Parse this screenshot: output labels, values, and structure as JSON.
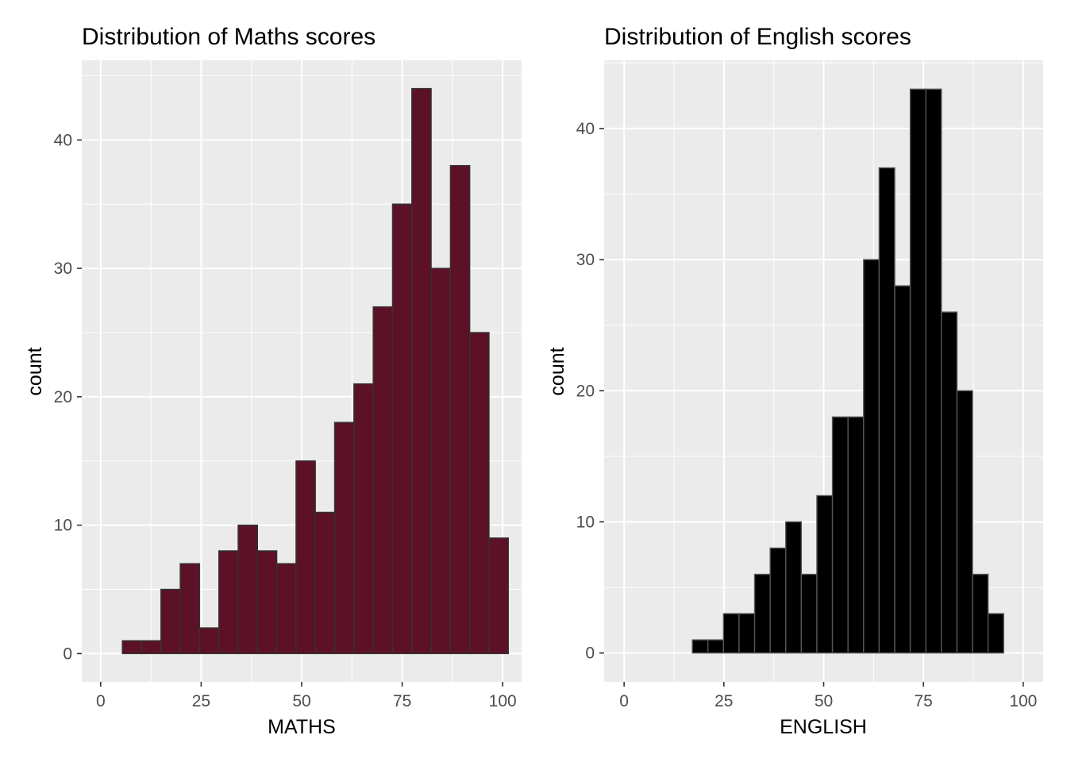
{
  "chart_data": [
    {
      "type": "bar",
      "subtype": "histogram",
      "title": "Distribution of Maths scores",
      "xlabel": "MATHS",
      "ylabel": "count",
      "fill_color": "#5c1127",
      "border_color": "#333333",
      "panel_color": "#ebebeb",
      "bin_width": 4.8,
      "xlim": [
        -4.7,
        104.7
      ],
      "ylim": [
        -2.2,
        46.2
      ],
      "x_ticks": [
        0,
        25,
        50,
        75,
        100
      ],
      "x_tick_labels": [
        "0",
        "25",
        "50",
        "75",
        "100"
      ],
      "y_ticks": [
        0,
        10,
        20,
        30,
        40
      ],
      "y_tick_labels": [
        "0",
        "10",
        "20",
        "30",
        "40"
      ],
      "bins": [
        {
          "x0": 5.4,
          "x1": 10.2,
          "count": 1
        },
        {
          "x0": 10.2,
          "x1": 15.0,
          "count": 1
        },
        {
          "x0": 15.0,
          "x1": 19.8,
          "count": 5
        },
        {
          "x0": 19.8,
          "x1": 24.6,
          "count": 7
        },
        {
          "x0": 24.6,
          "x1": 29.4,
          "count": 2
        },
        {
          "x0": 29.4,
          "x1": 34.2,
          "count": 8
        },
        {
          "x0": 34.2,
          "x1": 39.0,
          "count": 10
        },
        {
          "x0": 39.0,
          "x1": 43.8,
          "count": 8
        },
        {
          "x0": 43.8,
          "x1": 48.6,
          "count": 7
        },
        {
          "x0": 48.6,
          "x1": 53.4,
          "count": 15
        },
        {
          "x0": 53.4,
          "x1": 58.2,
          "count": 11
        },
        {
          "x0": 58.2,
          "x1": 63.0,
          "count": 18
        },
        {
          "x0": 63.0,
          "x1": 67.8,
          "count": 21
        },
        {
          "x0": 67.8,
          "x1": 72.6,
          "count": 27
        },
        {
          "x0": 72.6,
          "x1": 77.4,
          "count": 35
        },
        {
          "x0": 77.4,
          "x1": 82.2,
          "count": 44
        },
        {
          "x0": 82.2,
          "x1": 87.0,
          "count": 30
        },
        {
          "x0": 87.0,
          "x1": 91.8,
          "count": 38
        },
        {
          "x0": 91.8,
          "x1": 96.6,
          "count": 25
        },
        {
          "x0": 96.6,
          "x1": 101.4,
          "count": 9
        }
      ]
    },
    {
      "type": "bar",
      "subtype": "histogram",
      "title": "Distribution of English scores",
      "xlabel": "ENGLISH",
      "ylabel": "count",
      "fill_color": "#000000",
      "border_color": "#555555",
      "panel_color": "#ebebeb",
      "bin_width": 3.9,
      "xlim": [
        -5.0,
        105.0
      ],
      "ylim": [
        -2.2,
        45.2
      ],
      "x_ticks": [
        0,
        25,
        50,
        75,
        100
      ],
      "x_tick_labels": [
        "0",
        "25",
        "50",
        "75",
        "100"
      ],
      "y_ticks": [
        0,
        10,
        20,
        30,
        40
      ],
      "y_tick_labels": [
        "0",
        "10",
        "20",
        "30",
        "40"
      ],
      "bins": [
        {
          "x0": 17.1,
          "x1": 21.0,
          "count": 1
        },
        {
          "x0": 21.0,
          "x1": 24.9,
          "count": 1
        },
        {
          "x0": 24.9,
          "x1": 28.8,
          "count": 3
        },
        {
          "x0": 28.8,
          "x1": 32.7,
          "count": 3
        },
        {
          "x0": 32.7,
          "x1": 36.6,
          "count": 6
        },
        {
          "x0": 36.6,
          "x1": 40.5,
          "count": 8
        },
        {
          "x0": 40.5,
          "x1": 44.4,
          "count": 10
        },
        {
          "x0": 44.4,
          "x1": 48.3,
          "count": 6
        },
        {
          "x0": 48.3,
          "x1": 52.2,
          "count": 12
        },
        {
          "x0": 52.2,
          "x1": 56.1,
          "count": 18
        },
        {
          "x0": 56.1,
          "x1": 60.0,
          "count": 18
        },
        {
          "x0": 60.0,
          "x1": 63.9,
          "count": 30
        },
        {
          "x0": 63.9,
          "x1": 67.8,
          "count": 37
        },
        {
          "x0": 67.8,
          "x1": 71.7,
          "count": 28
        },
        {
          "x0": 71.7,
          "x1": 75.6,
          "count": 43
        },
        {
          "x0": 75.6,
          "x1": 79.5,
          "count": 43
        },
        {
          "x0": 79.5,
          "x1": 83.4,
          "count": 26
        },
        {
          "x0": 83.4,
          "x1": 87.3,
          "count": 20
        },
        {
          "x0": 87.3,
          "x1": 91.2,
          "count": 6
        },
        {
          "x0": 91.2,
          "x1": 95.1,
          "count": 3
        }
      ]
    }
  ]
}
